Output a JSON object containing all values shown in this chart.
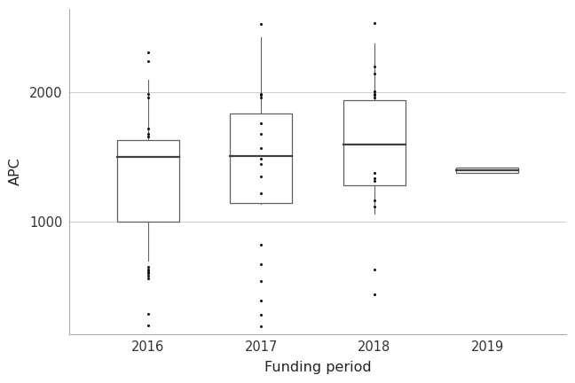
{
  "title": "",
  "xlabel": "Funding period",
  "ylabel": "APC",
  "background_color": "#ffffff",
  "grid_color": "#cccccc",
  "box_color": "#606060",
  "median_color": "#404040",
  "whisker_color": "#606060",
  "outlier_color": "#111111",
  "categories": [
    "2016",
    "2017",
    "2018",
    "2019"
  ],
  "box_data": {
    "2016": {
      "q1": 1000,
      "median": 1500,
      "q3": 1630,
      "whisker_low": 700,
      "whisker_high": 2100,
      "outliers_above": [
        2310,
        2240
      ],
      "outliers_inline": [
        1990,
        1960,
        1720,
        1680,
        1660
      ],
      "outliers_below": [
        650,
        630,
        615,
        600,
        580,
        560,
        290,
        200
      ]
    },
    "2017": {
      "q1": 1145,
      "median": 1510,
      "q3": 1840,
      "whisker_low": 1140,
      "whisker_high": 2430,
      "outliers_above": [
        2530
      ],
      "outliers_inline": [
        1990,
        1980,
        1965,
        1760,
        1680,
        1570,
        1490,
        1450,
        1350,
        1220
      ],
      "outliers_below": [
        820,
        670,
        545,
        390,
        280,
        195
      ]
    },
    "2018": {
      "q1": 1285,
      "median": 1600,
      "q3": 1940,
      "whisker_low": 1060,
      "whisker_high": 2380,
      "outliers_above": [
        2540,
        2200,
        2150,
        2010,
        1990,
        1980,
        1960
      ],
      "outliers_inline": [
        1380,
        1340,
        1320,
        1165,
        1120
      ],
      "outliers_below": [
        630,
        440
      ]
    },
    "2019": {
      "q1": 1380,
      "median": 1400,
      "q3": 1420,
      "whisker_low": 1380,
      "whisker_high": 1420,
      "outliers_above": [],
      "outliers_inline": [],
      "outliers_below": []
    }
  }
}
